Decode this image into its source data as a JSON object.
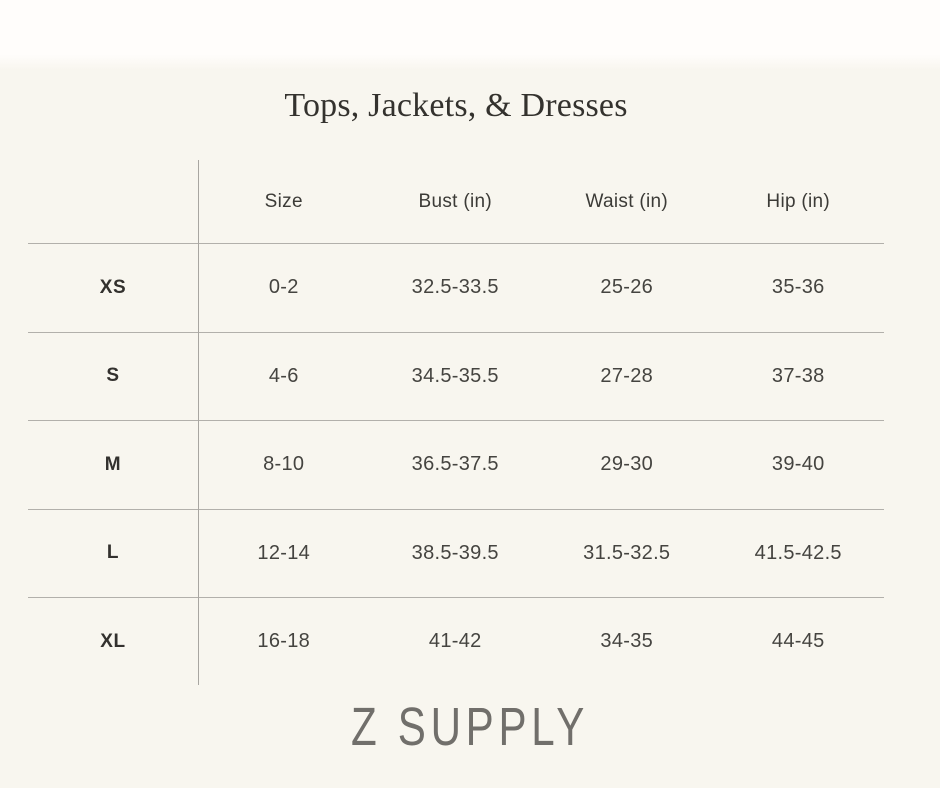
{
  "header": {
    "title": "Tops, Jackets, & Dresses"
  },
  "footer": {
    "brand": "Z SUPPLY"
  },
  "chart_data": {
    "type": "table",
    "title": "Tops, Jackets, & Dresses",
    "units": "inches",
    "columns": [
      "Size",
      "Bust (in)",
      "Waist (in)",
      "Hip (in)"
    ],
    "row_labels": [
      "XS",
      "S",
      "M",
      "L",
      "XL"
    ],
    "rows": [
      {
        "label": "XS",
        "values": [
          "0-2",
          "32.5-33.5",
          "25-26",
          "35-36"
        ]
      },
      {
        "label": "S",
        "values": [
          "4-6",
          "34.5-35.5",
          "27-28",
          "37-38"
        ]
      },
      {
        "label": "M",
        "values": [
          "8-10",
          "36.5-37.5",
          "29-30",
          "39-40"
        ]
      },
      {
        "label": "L",
        "values": [
          "12-14",
          "38.5-39.5",
          "31.5-32.5",
          "41.5-42.5"
        ]
      },
      {
        "label": "XL",
        "values": [
          "16-18",
          "41-42",
          "34-35",
          "44-45"
        ]
      }
    ],
    "brand": "Z SUPPLY",
    "layout": {
      "grid": "horizontal rules between rows, single vertical rule after label column, no outer border",
      "row_label_column": "left, bold",
      "legend": "none"
    }
  },
  "colors": {
    "background": "#f8f6ef",
    "top_band": "#fffdfb",
    "horizontal_line": "#b2b0ab",
    "vertical_line": "#a8a6a1",
    "cell_text": "#454440",
    "header_text": "#3c3b37",
    "label_text": "#33312e",
    "title_text": "#34322e",
    "brand_text": "#716f6b"
  }
}
